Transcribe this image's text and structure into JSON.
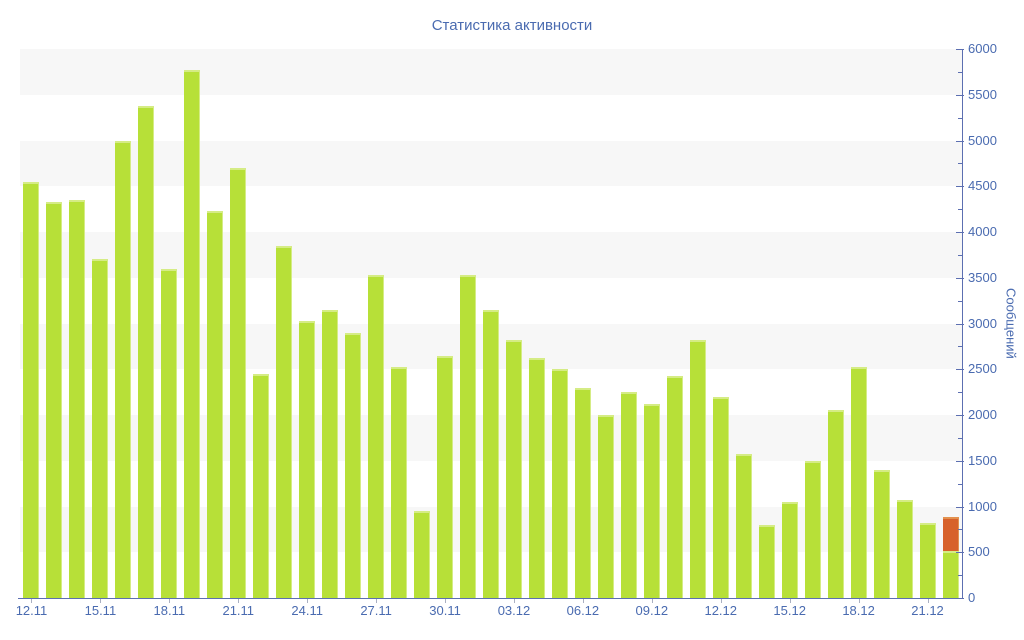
{
  "page": {
    "background": "#ffffff"
  },
  "chart_data": {
    "type": "bar",
    "title": "Статистика активности",
    "xlabel": "",
    "ylabel": "Сообщений",
    "ylim": [
      0,
      6000
    ],
    "y_major_step": 500,
    "y_minor_step": 250,
    "y_tick_labels": [
      "0",
      "500",
      "1000",
      "1500",
      "2000",
      "2500",
      "3000",
      "3500",
      "4000",
      "4500",
      "5000",
      "5500",
      "6000"
    ],
    "x_label_every": 3,
    "x_tick_labels": [
      "12.11",
      "15.11",
      "18.11",
      "21.11",
      "24.11",
      "27.11",
      "30.11",
      "03.12",
      "06.12",
      "09.12",
      "12.12",
      "15.12",
      "18.12",
      "21.12"
    ],
    "grid": "alternating-bands",
    "band_colors": [
      "#f7f7f7",
      "#ffffff"
    ],
    "legend_position": "none",
    "axis_color": "#5c6fb1",
    "label_color": "#4a6bb0",
    "categories": [
      "12.11",
      "13.11",
      "14.11",
      "15.11",
      "16.11",
      "17.11",
      "18.11",
      "19.11",
      "20.11",
      "21.11",
      "22.11",
      "23.11",
      "24.11",
      "25.11",
      "26.11",
      "27.11",
      "28.11",
      "29.11",
      "30.11",
      "01.12",
      "02.12",
      "03.12",
      "04.12",
      "05.12",
      "06.12",
      "07.12",
      "08.12",
      "09.12",
      "10.12",
      "11.12",
      "12.12",
      "13.12",
      "14.12",
      "15.12",
      "16.12",
      "17.12",
      "18.12",
      "19.12",
      "20.12",
      "21.12",
      "22.12"
    ],
    "series": [
      {
        "name": "messages",
        "color": "#b7e038",
        "values": [
          4550,
          4325,
          4350,
          3700,
          5000,
          5375,
          3600,
          5775,
          4225,
          4700,
          2450,
          3850,
          3025,
          3150,
          2900,
          3525,
          2525,
          950,
          2650,
          3525,
          3150,
          2825,
          2625,
          2500,
          2300,
          2000,
          2250,
          2125,
          2425,
          2825,
          2200,
          1575,
          800,
          1050,
          1500,
          2050,
          2525,
          1400,
          1075,
          825,
          510
        ]
      },
      {
        "name": "messages-current-day-top-segment",
        "color": "#d7612b",
        "values": [
          0,
          0,
          0,
          0,
          0,
          0,
          0,
          0,
          0,
          0,
          0,
          0,
          0,
          0,
          0,
          0,
          0,
          0,
          0,
          0,
          0,
          0,
          0,
          0,
          0,
          0,
          0,
          0,
          0,
          0,
          0,
          0,
          0,
          0,
          0,
          0,
          0,
          0,
          0,
          0,
          380
        ]
      }
    ]
  }
}
